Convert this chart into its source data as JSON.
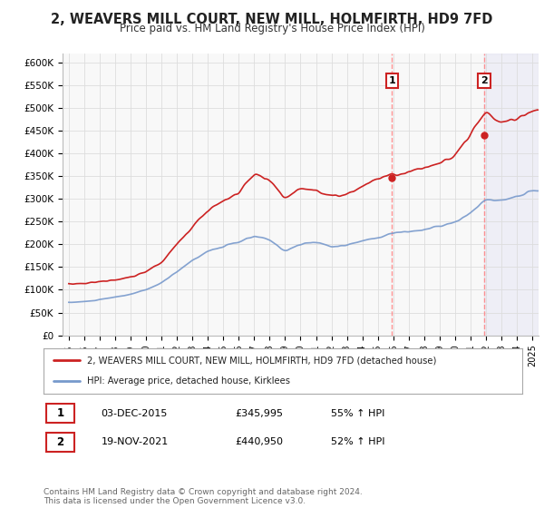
{
  "title": "2, WEAVERS MILL COURT, NEW MILL, HOLMFIRTH, HD9 7FD",
  "subtitle": "Price paid vs. HM Land Registry's House Price Index (HPI)",
  "title_fontsize": 10.5,
  "subtitle_fontsize": 8.5,
  "ylim": [
    0,
    620000
  ],
  "yticks": [
    0,
    50000,
    100000,
    150000,
    200000,
    250000,
    300000,
    350000,
    400000,
    450000,
    500000,
    550000,
    600000
  ],
  "ytick_labels": [
    "£0",
    "£50K",
    "£100K",
    "£150K",
    "£200K",
    "£250K",
    "£300K",
    "£350K",
    "£400K",
    "£450K",
    "£500K",
    "£550K",
    "£600K"
  ],
  "xlim_start": 1994.6,
  "xlim_end": 2025.4,
  "property_color": "#cc2222",
  "hpi_color": "#7799cc",
  "bg_color": "#ffffff",
  "plot_bg_color": "#f8f8f8",
  "grid_color": "#dddddd",
  "sale1_x": 2015.92,
  "sale1_y": 345995,
  "sale2_x": 2021.88,
  "sale2_y": 440950,
  "legend_property": "2, WEAVERS MILL COURT, NEW MILL, HOLMFIRTH, HD9 7FD (detached house)",
  "legend_hpi": "HPI: Average price, detached house, Kirklees",
  "sale1_date": "03-DEC-2015",
  "sale1_price": "£345,995",
  "sale1_hpi": "55% ↑ HPI",
  "sale2_date": "19-NOV-2021",
  "sale2_price": "£440,950",
  "sale2_hpi": "52% ↑ HPI",
  "footer": "Contains HM Land Registry data © Crown copyright and database right 2024.\nThis data is licensed under the Open Government Licence v3.0."
}
